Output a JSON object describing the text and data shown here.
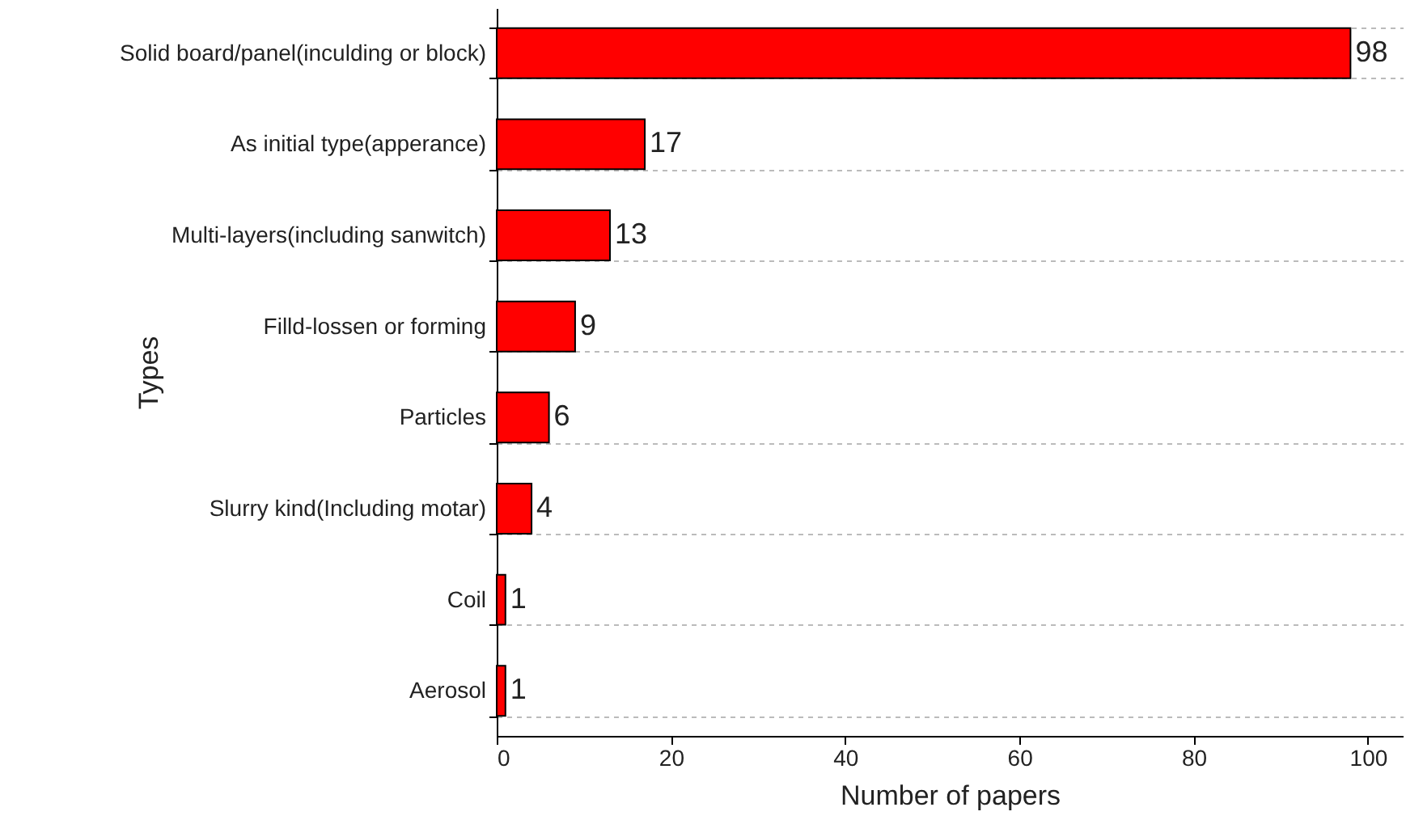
{
  "chart_data": {
    "type": "bar",
    "orientation": "horizontal",
    "xlabel": "Number of papers",
    "ylabel": "Types",
    "categories": [
      "Solid board/panel(inculding or block)",
      "As initial type(apperance)",
      "Multi-layers(including sanwitch)",
      "Filld-lossen or forming",
      "Particles",
      "Slurry kind(Including motar)",
      "Coil",
      "Aerosol"
    ],
    "values": [
      98,
      17,
      13,
      9,
      6,
      4,
      1,
      1
    ],
    "color": "#ff0000",
    "xlim": [
      0,
      104
    ],
    "xticks": [
      0,
      20,
      40,
      60,
      80,
      100
    ],
    "grid": "y",
    "data_labels": true
  }
}
